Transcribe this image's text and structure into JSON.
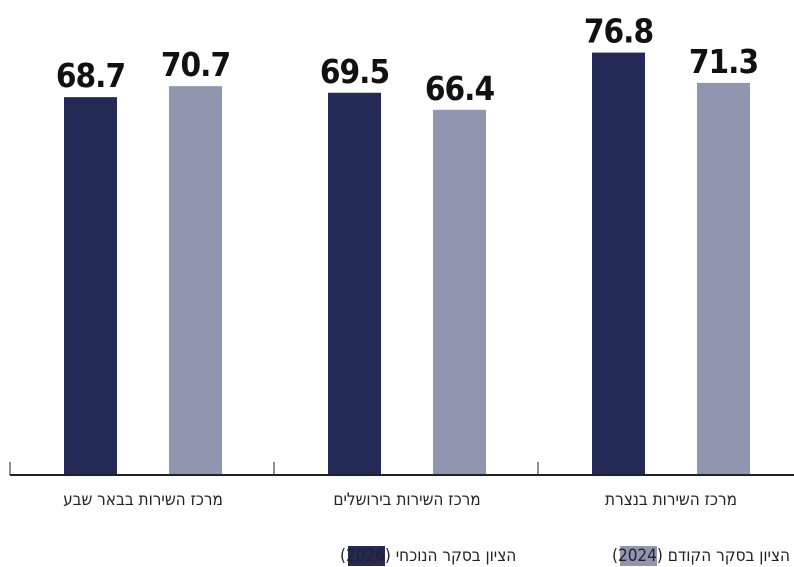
{
  "chart_data": {
    "type": "bar",
    "categories": [
      "מרכז השירות בבאר שבע",
      "מרכז השירות בירושלים",
      "מרכז השירות בנצרת"
    ],
    "series": [
      {
        "name": "הציון בסקר הנוכחי (2026)",
        "color": "#232A55",
        "values": [
          68.7,
          69.5,
          76.8
        ]
      },
      {
        "name": "הציון בסקר הקודם (2024)",
        "color": "#9196B0",
        "values": [
          70.7,
          66.4,
          71.3
        ]
      }
    ],
    "ylim": [
      0,
      78
    ],
    "grid": false,
    "legend_position": "bottom"
  }
}
